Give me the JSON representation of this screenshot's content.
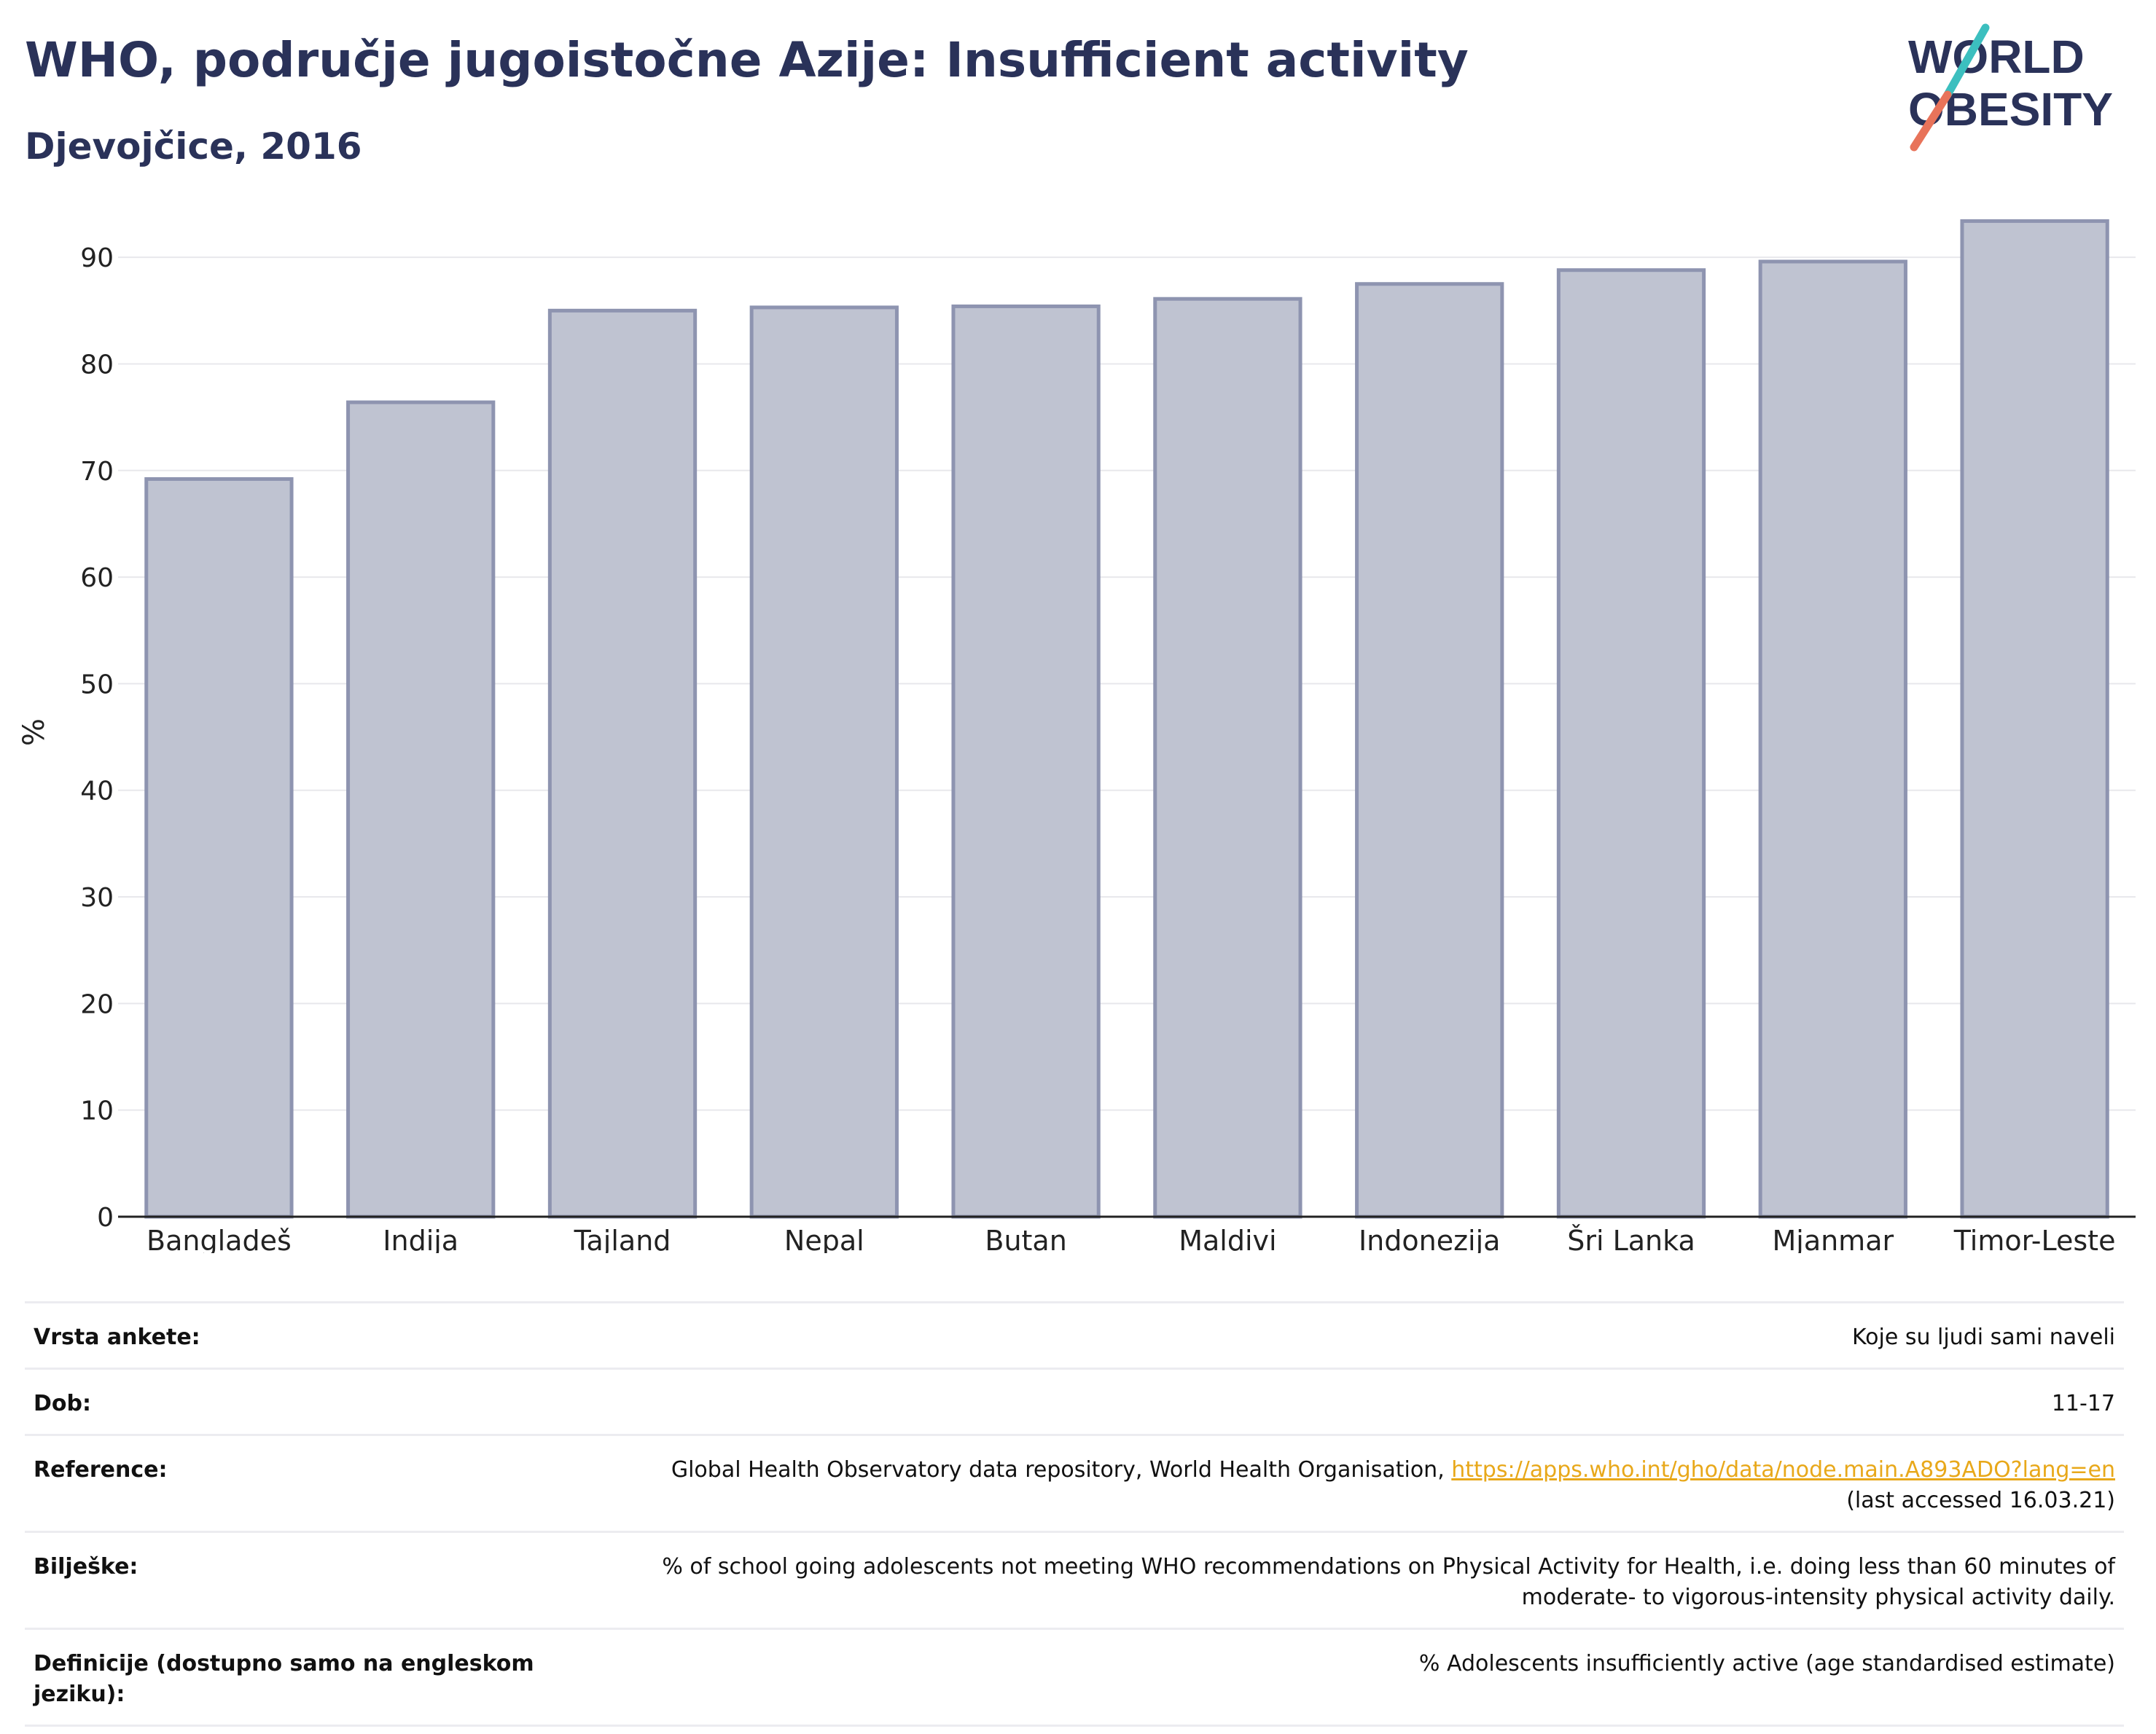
{
  "header": {
    "title": "WHO, područje jugoistočne Azije: Insufficient activity",
    "subtitle": "Djevojčice, 2016"
  },
  "logo": {
    "line1": "WORLD",
    "line2": "OBESITY"
  },
  "chart_data": {
    "type": "bar",
    "categories": [
      "Bangladeš",
      "Indija",
      "Tajland",
      "Nepal",
      "Butan",
      "Maldivi",
      "Indonezija",
      "Šri Lanka",
      "Mjanmar",
      "Timor-Leste"
    ],
    "values": [
      69.2,
      76.4,
      85.0,
      85.3,
      85.4,
      86.1,
      87.5,
      88.8,
      89.6,
      93.4
    ],
    "ylabel": "%",
    "ylim": [
      0,
      95
    ],
    "yticks": [
      0,
      10,
      20,
      30,
      40,
      50,
      60,
      70,
      80,
      90
    ],
    "grid": true,
    "colors": {
      "bar_fill": "#bfc3d1",
      "bar_stroke": "#8e94b0"
    }
  },
  "info": {
    "rows": [
      {
        "key": "Vrsta ankete:",
        "value": "Koje su ljudi sami naveli"
      },
      {
        "key": "Dob:",
        "value": "11-17"
      },
      {
        "key": "Reference:",
        "value": "Global Health Observatory data repository, World Health Organisation, ",
        "link": "https://apps.who.int/gho/data/node.main.A893ADO?lang=en",
        "extra": "(last accessed 16.03.21)"
      },
      {
        "key": "Bilješke:",
        "value": "% of school going adolescents not meeting WHO recommendations on Physical Activity for Health, i.e. doing less than 60 minutes of",
        "extra": "moderate- to vigorous-intensity physical activity daily."
      },
      {
        "key": "Definicije (dostupno samo na engleskom jeziku):",
        "value": "% Adolescents insufficiently active (age standardised estimate)"
      }
    ]
  },
  "colors": {
    "brand_navy": "#2a3259",
    "logo_teal": "#3cbfbf",
    "logo_coral": "#e8735a",
    "link": "#e8a81a"
  }
}
